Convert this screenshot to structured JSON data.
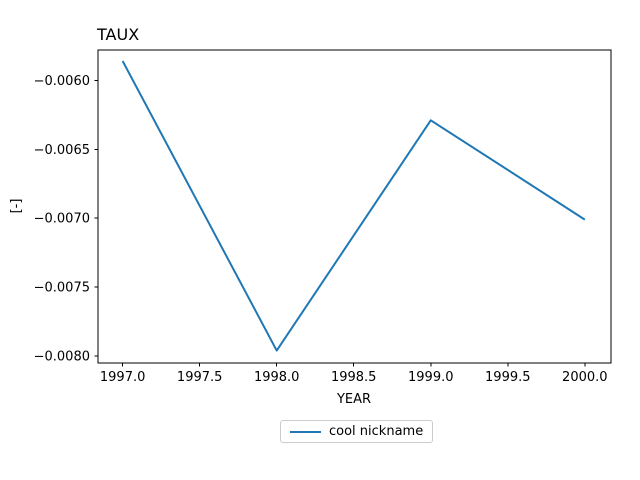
{
  "figure": {
    "background": "#ffffff",
    "title": "TAUX",
    "xlabel": "YEAR",
    "ylabel": "[-]"
  },
  "legend": {
    "label": "cool nickname",
    "line_color": "#1f77b4",
    "border_color": "#cccccc",
    "position": "lower center, below axes"
  },
  "chart_data": {
    "type": "line",
    "title": "TAUX",
    "xlabel": "YEAR",
    "ylabel": "[-]",
    "x": [
      1997,
      1998,
      1999,
      2000
    ],
    "series": [
      {
        "name": "cool nickname",
        "color": "#1f77b4",
        "values": [
          -0.00586,
          -0.00796,
          -0.00629,
          -0.00701
        ]
      }
    ],
    "xlim": [
      1996.84,
      2000.17
    ],
    "ylim": [
      -0.00805,
      -0.00578
    ],
    "xticks": {
      "values": [
        1997.0,
        1997.5,
        1998.0,
        1998.5,
        1999.0,
        1999.5,
        2000.0
      ],
      "labels": [
        "1997.0",
        "1997.5",
        "1998.0",
        "1998.5",
        "1999.0",
        "1999.5",
        "2000.0"
      ]
    },
    "yticks": {
      "values": [
        -0.006,
        -0.0065,
        -0.007,
        -0.0075,
        -0.008
      ],
      "labels": [
        "−0.0060",
        "−0.0065",
        "−0.0070",
        "−0.0075",
        "−0.0080"
      ]
    },
    "grid": false,
    "legend_position": "lower center outside",
    "title_loc": "left"
  }
}
